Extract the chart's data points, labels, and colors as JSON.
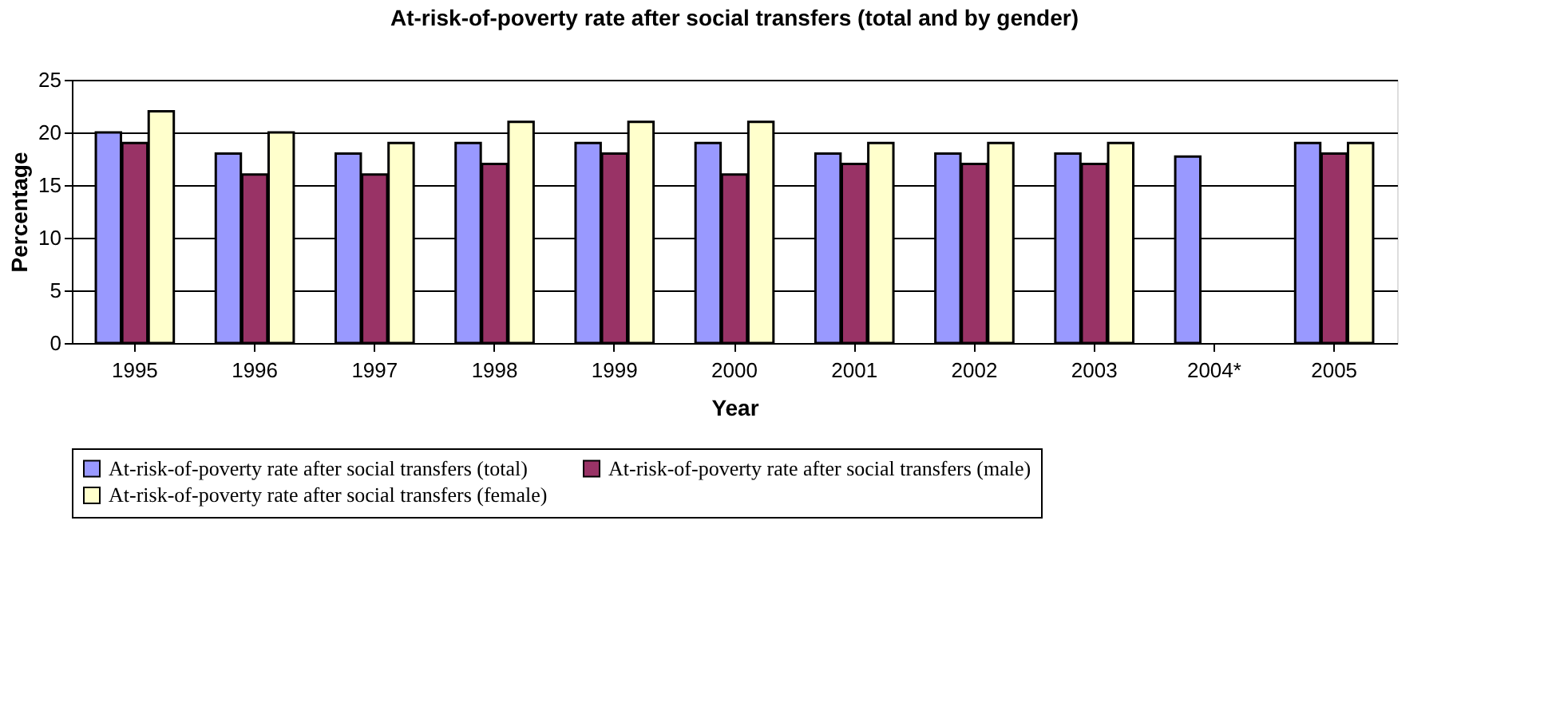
{
  "chart_data": {
    "type": "bar",
    "title": "At-risk-of-poverty rate after social transfers (total and by gender)",
    "xlabel": "Year",
    "ylabel": "Percentage",
    "categories": [
      "1995",
      "1996",
      "1997",
      "1998",
      "1999",
      "2000",
      "2001",
      "2002",
      "2003",
      "2004*",
      "2005"
    ],
    "series": [
      {
        "name": "At-risk-of-poverty rate after social transfers (total)",
        "color": "#9999ff",
        "values": [
          20,
          18,
          18,
          19,
          19,
          19,
          18,
          18,
          18,
          17.7,
          19
        ]
      },
      {
        "name": "At-risk-of-poverty rate after social transfers (male)",
        "color": "#993366",
        "values": [
          19,
          16,
          16,
          17,
          18,
          16,
          17,
          17,
          17,
          null,
          18
        ]
      },
      {
        "name": "At-risk-of-poverty rate after social transfers (female)",
        "color": "#ffffcc",
        "values": [
          22,
          20,
          19,
          21,
          21,
          21,
          19,
          19,
          19,
          null,
          19
        ]
      }
    ],
    "ylim": [
      0,
      25
    ],
    "yticks": [
      0,
      5,
      10,
      15,
      20,
      25
    ],
    "grid": "y",
    "legend": "bottom"
  }
}
